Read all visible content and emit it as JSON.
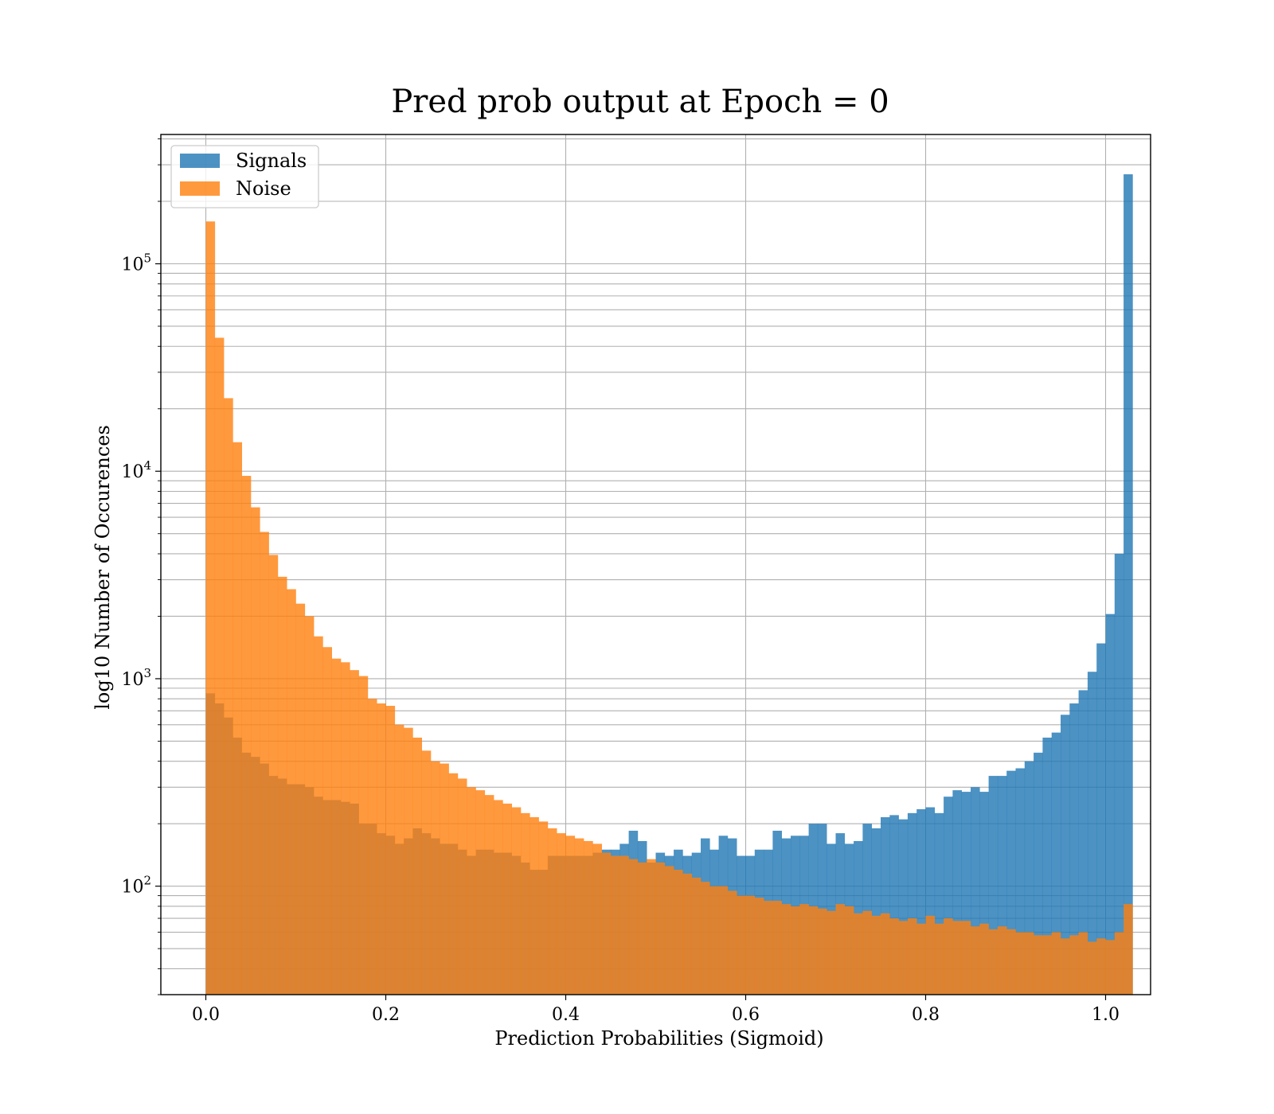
{
  "chart_data": {
    "type": "bar",
    "title": "Pred prob output at Epoch = 0",
    "xlabel": "Prediction Probabilities (Sigmoid)",
    "ylabel": "log10 Number of Occurences",
    "yscale": "log",
    "xlim": [
      -0.05,
      1.05
    ],
    "ylim": [
      30,
      420000
    ],
    "xticks": [
      "0.0",
      "0.2",
      "0.4",
      "0.6",
      "0.8",
      "1.0"
    ],
    "yticks": [
      {
        "base": "10",
        "exp": "2",
        "value": 100
      },
      {
        "base": "10",
        "exp": "3",
        "value": 1000
      },
      {
        "base": "10",
        "exp": "4",
        "value": 10000
      },
      {
        "base": "10",
        "exp": "5",
        "value": 100000
      }
    ],
    "grid": true,
    "legend_position": "top-left",
    "bin_width": 0.01,
    "bin_start": 0.0,
    "series": [
      {
        "name": "Signals",
        "color": "#1f77b4",
        "values": [
          850,
          760,
          650,
          520,
          440,
          420,
          390,
          340,
          330,
          310,
          310,
          300,
          270,
          260,
          260,
          255,
          250,
          200,
          200,
          180,
          175,
          160,
          170,
          190,
          180,
          170,
          160,
          160,
          150,
          140,
          150,
          150,
          145,
          145,
          140,
          130,
          120,
          120,
          140,
          140,
          140,
          140,
          140,
          145,
          150,
          150,
          160,
          185,
          165,
          130,
          145,
          140,
          150,
          140,
          145,
          170,
          150,
          175,
          170,
          140,
          140,
          150,
          150,
          185,
          170,
          175,
          175,
          200,
          200,
          160,
          180,
          160,
          165,
          200,
          190,
          215,
          220,
          210,
          225,
          235,
          240,
          225,
          270,
          290,
          285,
          300,
          285,
          340,
          340,
          360,
          370,
          400,
          440,
          520,
          550,
          670,
          760,
          880,
          1080,
          1480,
          2050,
          4000,
          270000
        ]
      },
      {
        "name": "Noise",
        "color": "#ff7f0e",
        "values": [
          160000,
          44000,
          22500,
          13800,
          9500,
          6700,
          5100,
          3950,
          3100,
          2700,
          2300,
          2000,
          1600,
          1420,
          1250,
          1200,
          1100,
          1030,
          800,
          760,
          740,
          600,
          580,
          520,
          450,
          400,
          390,
          350,
          330,
          300,
          290,
          275,
          260,
          250,
          240,
          225,
          215,
          205,
          190,
          180,
          175,
          170,
          165,
          160,
          145,
          140,
          140,
          135,
          130,
          135,
          130,
          125,
          120,
          115,
          110,
          105,
          100,
          100,
          95,
          90,
          90,
          88,
          85,
          85,
          82,
          80,
          82,
          80,
          78,
          76,
          82,
          80,
          74,
          76,
          72,
          74,
          70,
          68,
          70,
          66,
          72,
          66,
          70,
          68,
          68,
          64,
          66,
          62,
          64,
          62,
          60,
          60,
          58,
          58,
          60,
          56,
          58,
          60,
          54,
          56,
          55,
          60,
          82
        ]
      }
    ]
  }
}
